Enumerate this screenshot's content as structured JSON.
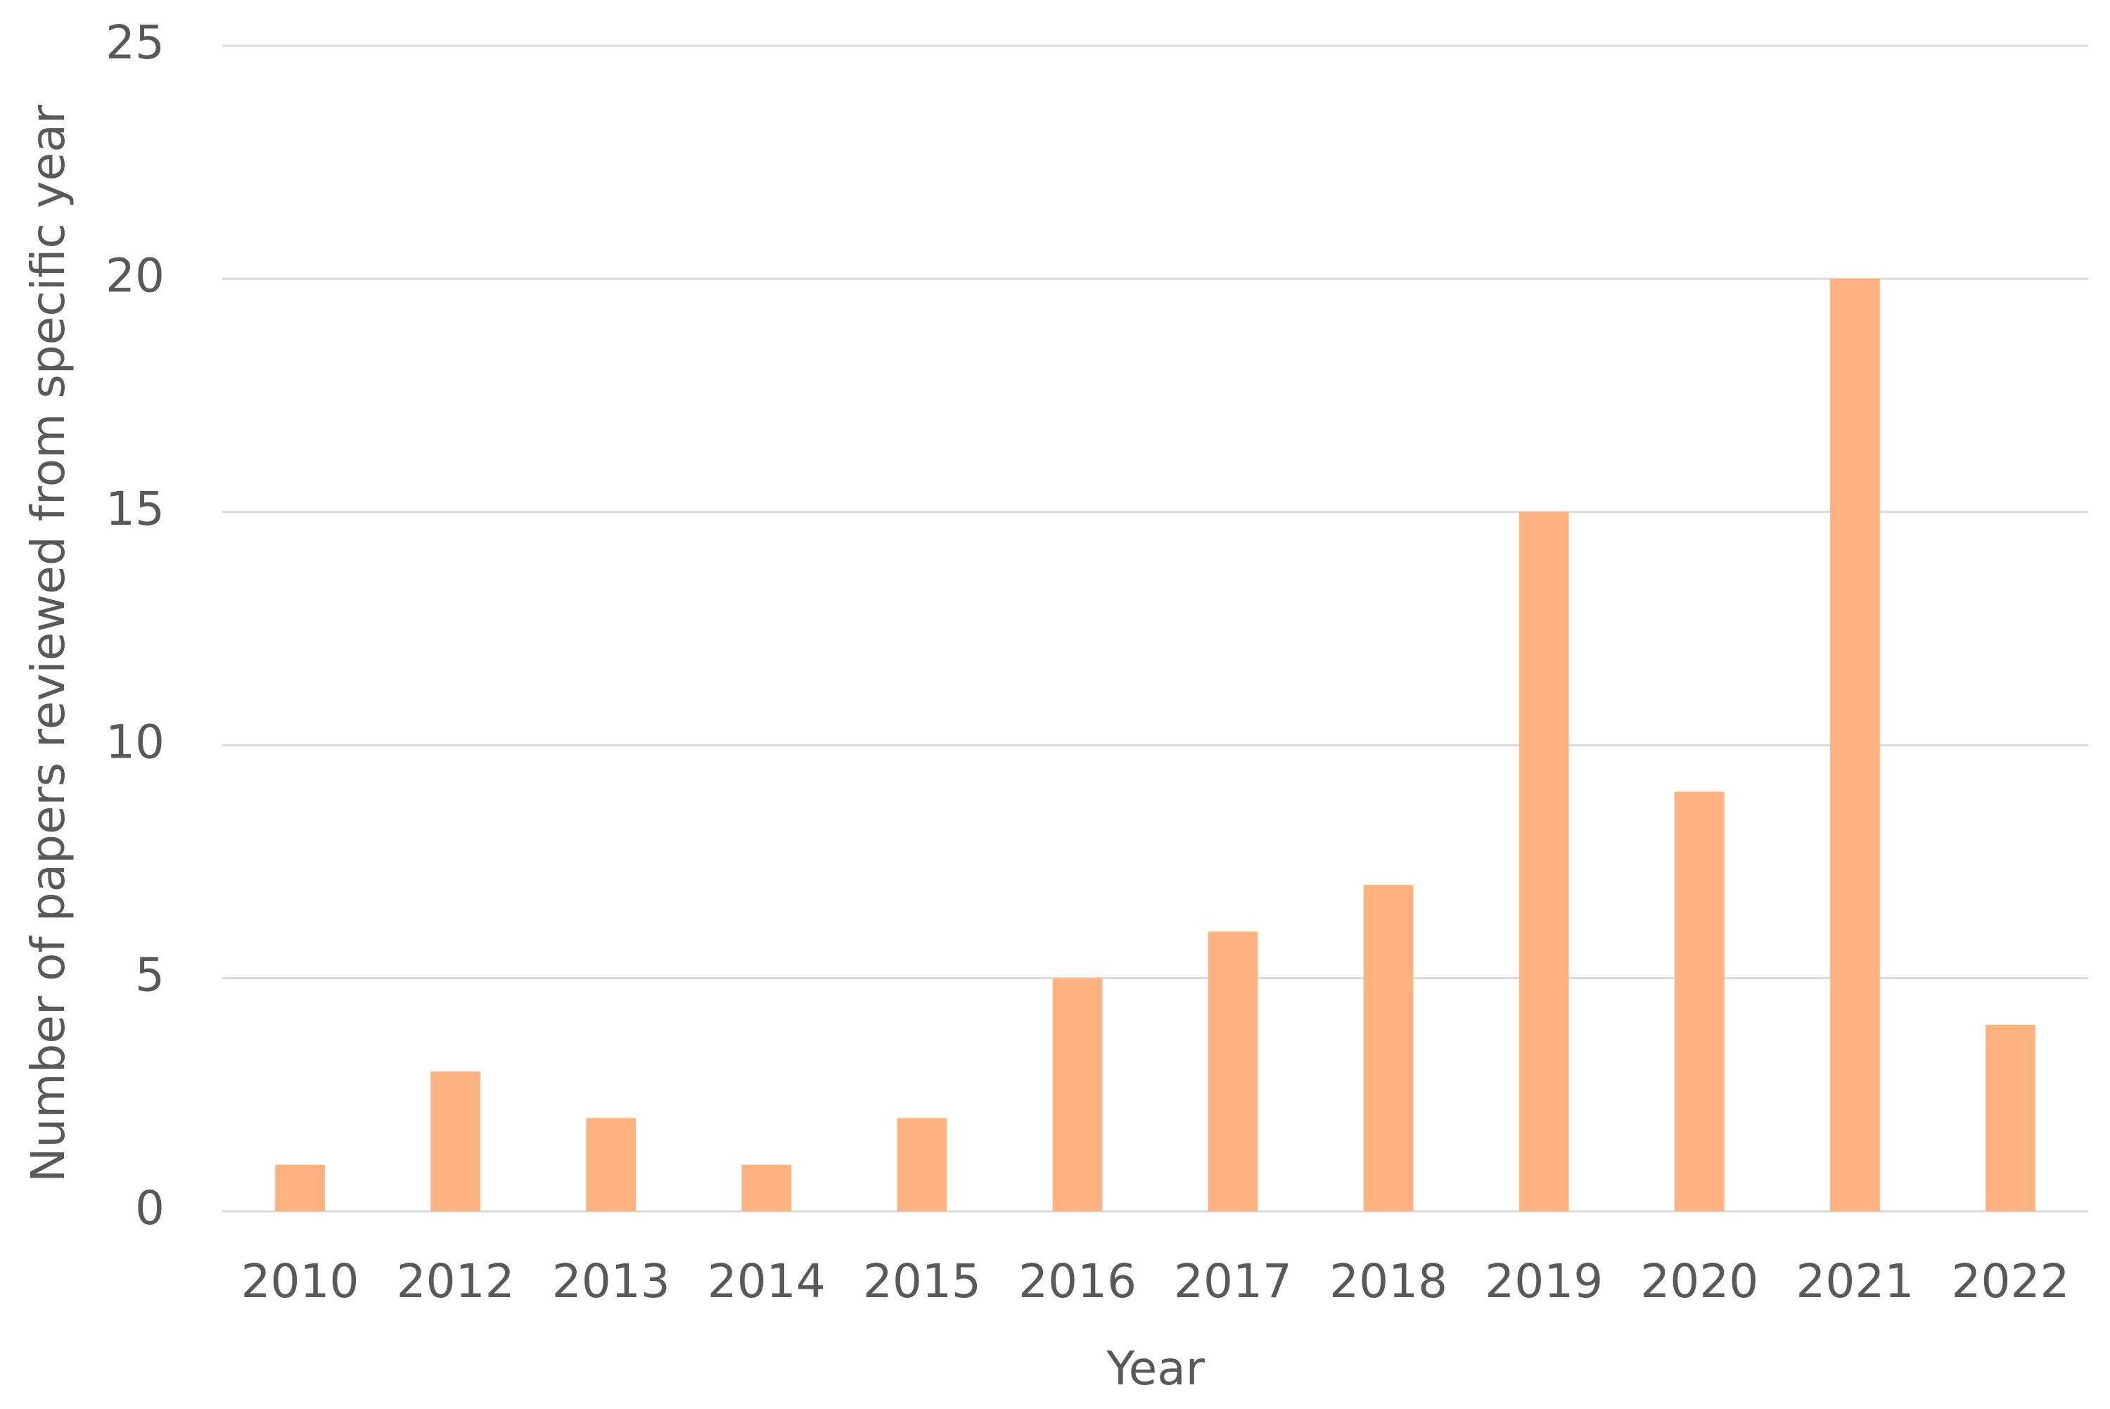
{
  "chart_data": {
    "type": "bar",
    "x_label": "Year",
    "y_label": "Number of papers reviewed from specific year",
    "categories": [
      "2010",
      "2012",
      "2013",
      "2014",
      "2015",
      "2016",
      "2017",
      "2018",
      "2019",
      "2020",
      "2021",
      "2022"
    ],
    "values": [
      1,
      3,
      2,
      1,
      2,
      5,
      6,
      7,
      15,
      9,
      20,
      4
    ],
    "color": "#fdb27f",
    "ylim": [
      0,
      25
    ],
    "yticks": [
      0,
      5,
      10,
      15,
      20,
      25
    ],
    "grid": true
  }
}
